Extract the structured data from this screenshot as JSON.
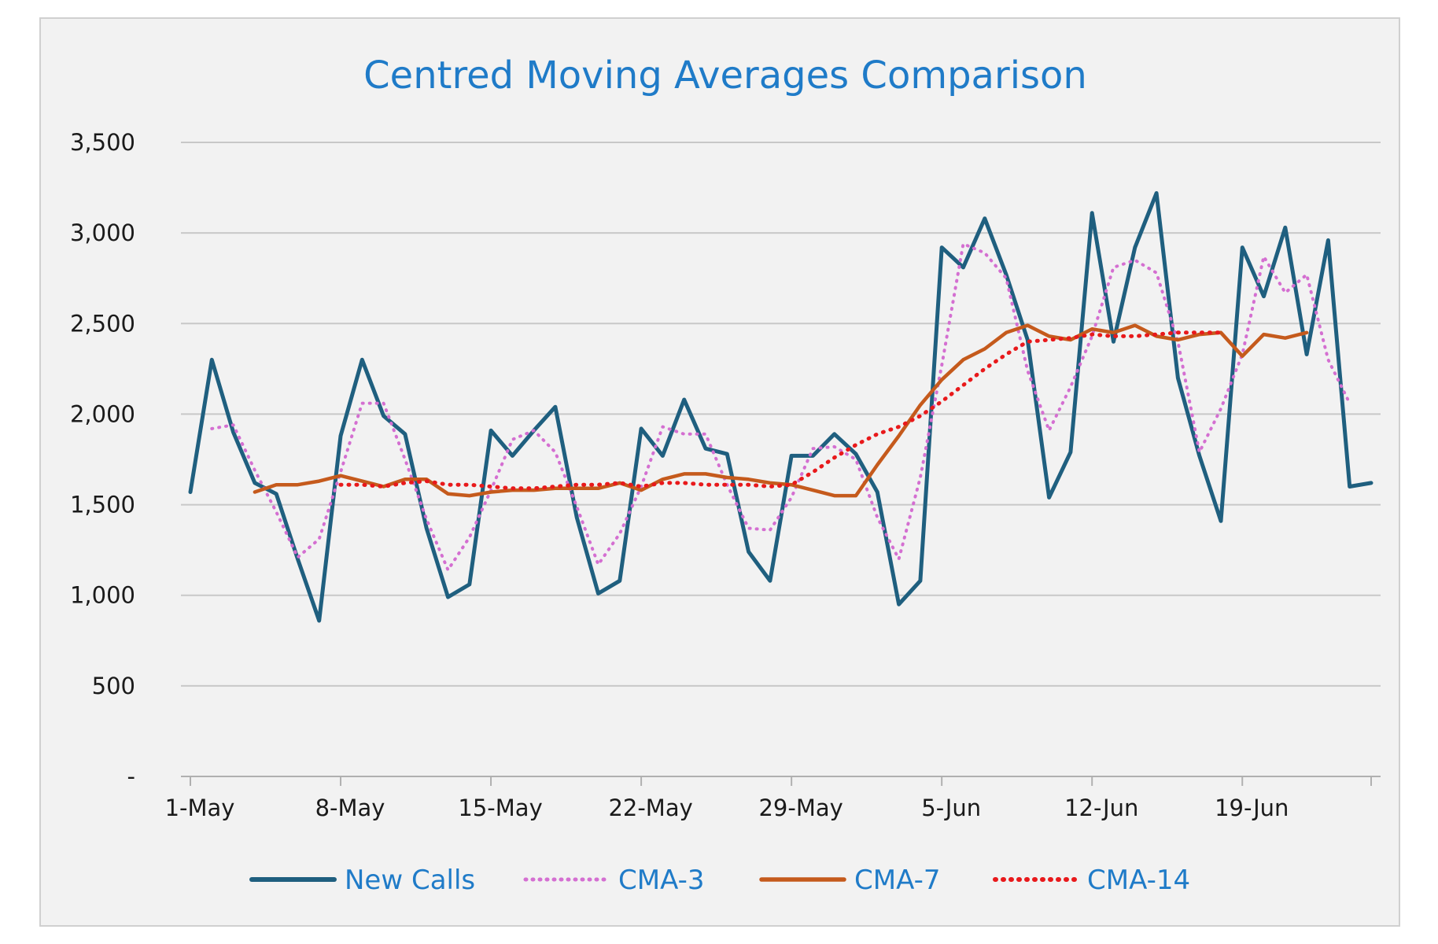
{
  "chart_data": {
    "type": "line",
    "title": "Centred Moving Averages Comparison",
    "xlabel": "",
    "ylabel": "",
    "ylim": [
      0,
      3500
    ],
    "y_ticks": [
      {
        "value": 0,
        "label": "-"
      },
      {
        "value": 500,
        "label": "500"
      },
      {
        "value": 1000,
        "label": "1,000"
      },
      {
        "value": 1500,
        "label": "1,500"
      },
      {
        "value": 2000,
        "label": "2,000"
      },
      {
        "value": 2500,
        "label": "2,500"
      },
      {
        "value": 3000,
        "label": "3,000"
      },
      {
        "value": 3500,
        "label": "3,500"
      }
    ],
    "x_ticks": [
      {
        "index": 0,
        "label": "1-May"
      },
      {
        "index": 7,
        "label": "8-May"
      },
      {
        "index": 14,
        "label": "15-May"
      },
      {
        "index": 21,
        "label": "22-May"
      },
      {
        "index": 28,
        "label": "29-May"
      },
      {
        "index": 35,
        "label": "5-Jun"
      },
      {
        "index": 42,
        "label": "12-Jun"
      },
      {
        "index": 49,
        "label": "19-Jun"
      }
    ],
    "x_count": 56,
    "grid": true,
    "legend_position": "bottom",
    "series": [
      {
        "name": "New Calls",
        "color": "#1f5f7f",
        "style": "solid",
        "values": [
          1570,
          2300,
          1900,
          1620,
          1560,
          1200,
          860,
          1880,
          2300,
          1990,
          1890,
          1370,
          990,
          1060,
          1910,
          1770,
          1910,
          2040,
          1430,
          1010,
          1080,
          1920,
          1770,
          2080,
          1810,
          1780,
          1240,
          1080,
          1770,
          1770,
          1890,
          1780,
          1570,
          950,
          1080,
          2920,
          2810,
          3080,
          2770,
          2410,
          1540,
          1790,
          3110,
          2400,
          2920,
          3220,
          2200,
          1770,
          1410,
          2920,
          2650,
          3030,
          2330,
          2960,
          1600,
          1620
        ]
      },
      {
        "name": "CMA-3",
        "color": "#d46fd1",
        "style": "dotted",
        "values": [
          null,
          1920,
          1940,
          1690,
          1460,
          1210,
          1310,
          1680,
          2060,
          2060,
          1750,
          1420,
          1140,
          1320,
          1580,
          1860,
          1910,
          1790,
          1490,
          1170,
          1340,
          1600,
          1930,
          1890,
          1890,
          1610,
          1370,
          1360,
          1540,
          1810,
          1820,
          1750,
          1430,
          1200,
          1650,
          2270,
          2940,
          2890,
          2750,
          2240,
          1910,
          2150,
          2430,
          2810,
          2850,
          2780,
          2400,
          1790,
          2030,
          2330,
          2870,
          2670,
          2770,
          2300,
          2060,
          null
        ]
      },
      {
        "name": "CMA-7",
        "color": "#c55a1c",
        "style": "solid",
        "values": [
          null,
          null,
          null,
          1570,
          1610,
          1610,
          1630,
          1660,
          1630,
          1600,
          1640,
          1640,
          1560,
          1550,
          1570,
          1580,
          1580,
          1590,
          1590,
          1590,
          1620,
          1580,
          1640,
          1670,
          1670,
          1650,
          1640,
          1620,
          1610,
          1580,
          1550,
          1550,
          1720,
          1880,
          2050,
          2190,
          2300,
          2360,
          2450,
          2490,
          2430,
          2410,
          2470,
          2450,
          2490,
          2430,
          2410,
          2440,
          2450,
          2320,
          2440,
          2420,
          2450,
          null,
          null,
          null
        ]
      },
      {
        "name": "CMA-14",
        "color": "#e8191b",
        "style": "dotted",
        "values": [
          null,
          null,
          null,
          null,
          null,
          null,
          null,
          1610,
          1610,
          1600,
          1620,
          1630,
          1610,
          1610,
          1600,
          1590,
          1590,
          1600,
          1610,
          1610,
          1620,
          1600,
          1620,
          1620,
          1610,
          1610,
          1610,
          1600,
          1610,
          1680,
          1760,
          1830,
          1890,
          1930,
          1990,
          2070,
          2160,
          2250,
          2330,
          2400,
          2410,
          2420,
          2440,
          2430,
          2430,
          2440,
          2450,
          2450,
          2450,
          null,
          null,
          null,
          null,
          null,
          null,
          null
        ]
      }
    ]
  }
}
